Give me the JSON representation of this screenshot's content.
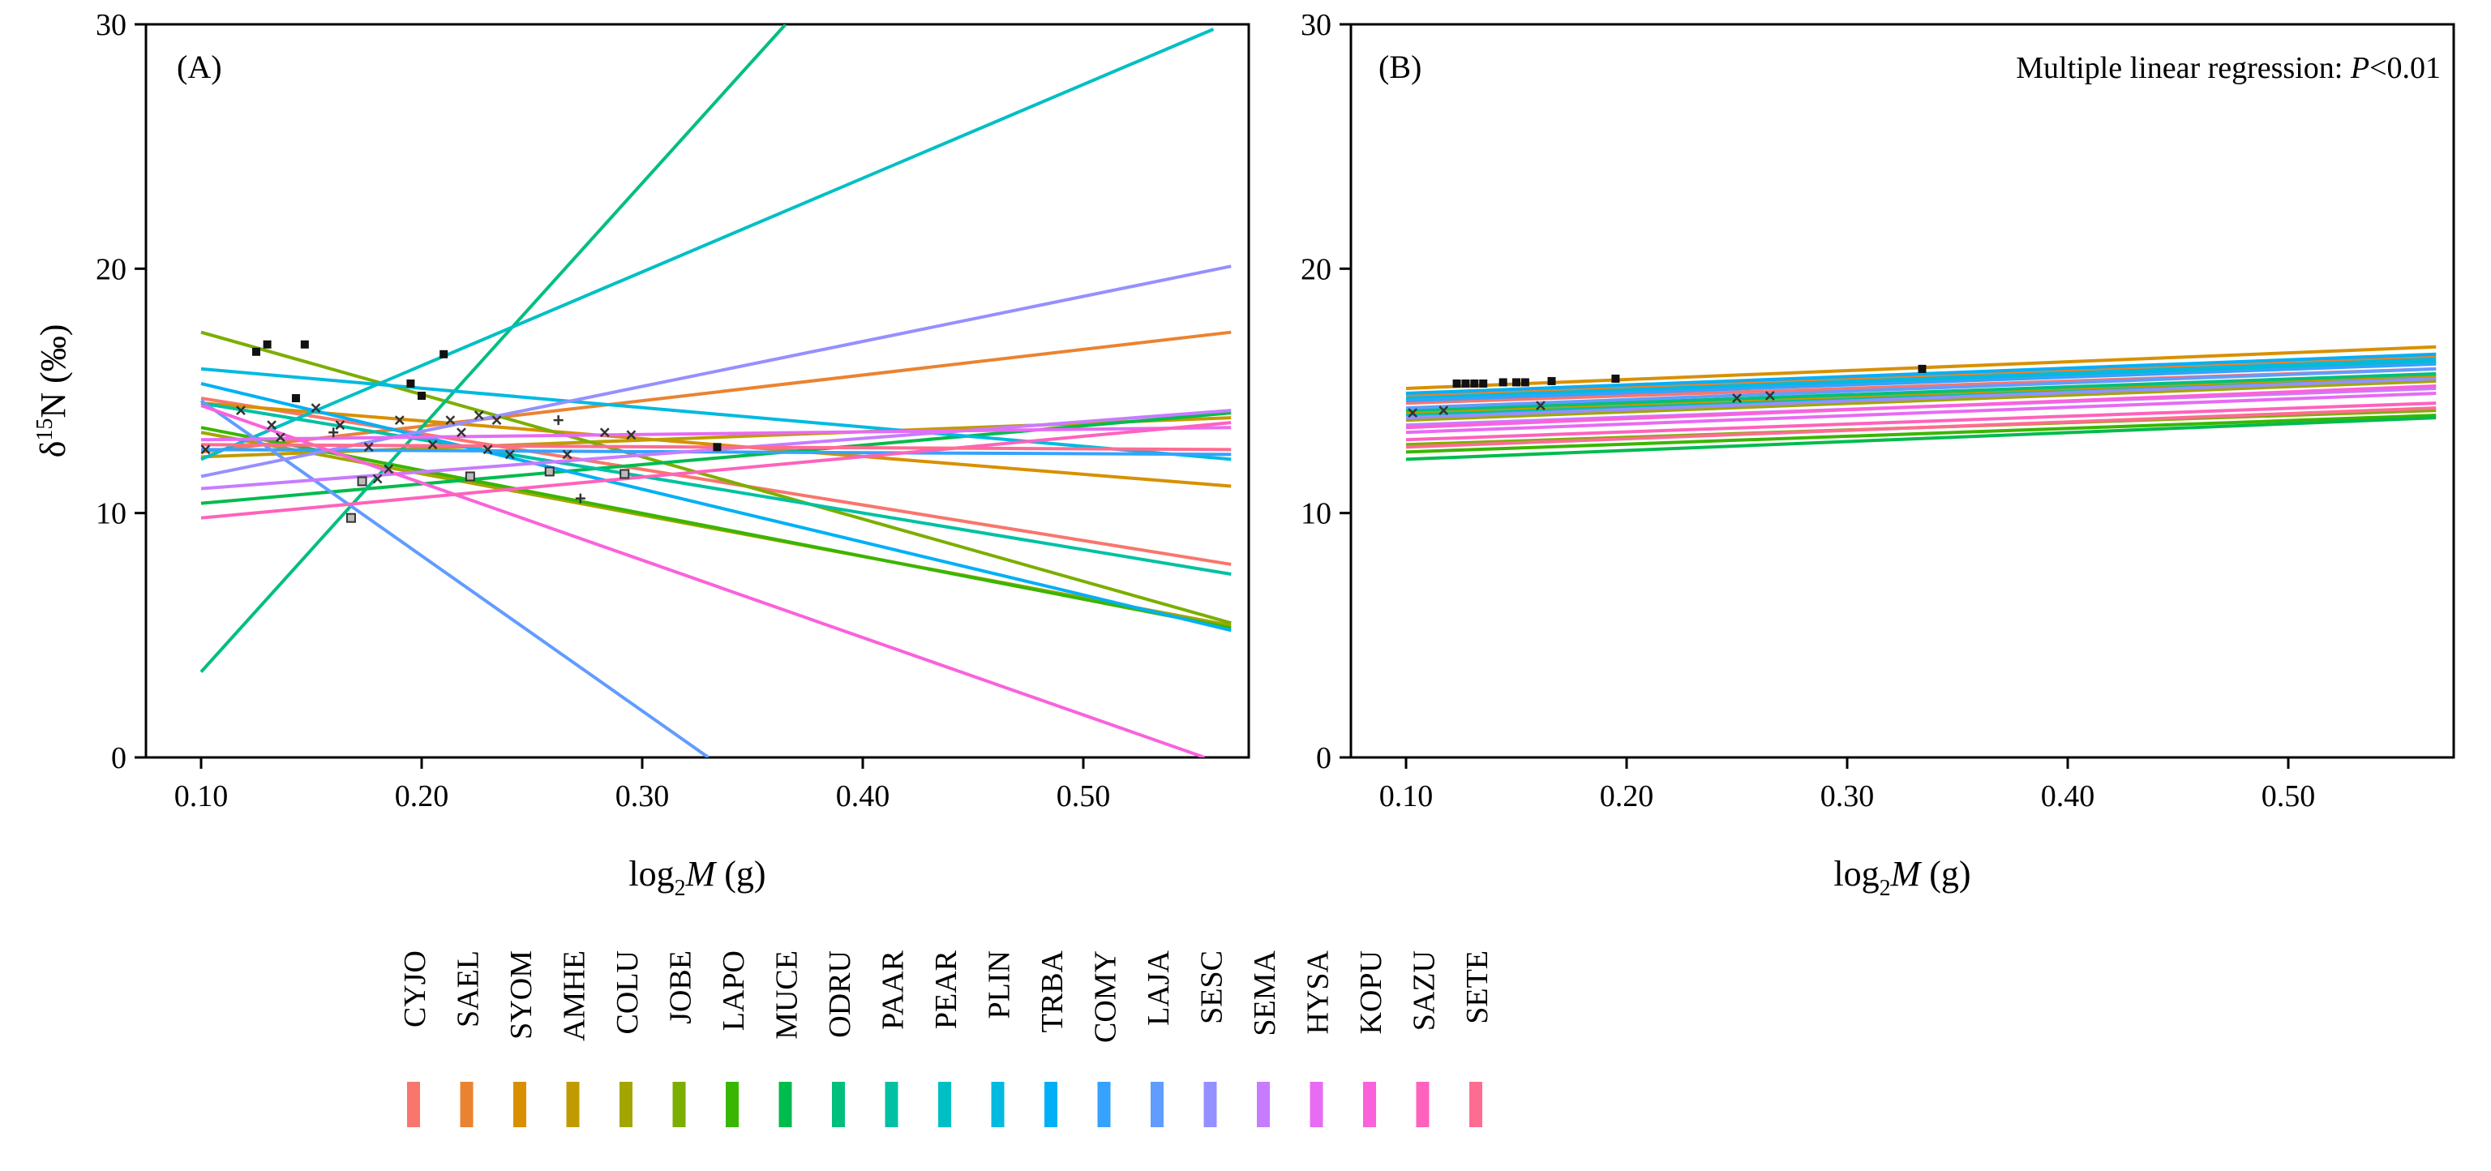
{
  "chart_data": [
    {
      "panel": "A",
      "panel_label": "(A)",
      "type": "scatter-with-regression-lines",
      "xlabel": "log2M (g)",
      "ylabel": "δ15N (‰)",
      "xlim": [
        0.075,
        0.575
      ],
      "ylim": [
        0,
        30
      ],
      "x_ticks": [
        0.1,
        0.2,
        0.3,
        0.4,
        0.5
      ],
      "x_tick_labels": [
        "0.10",
        "0.20",
        "0.30",
        "0.40",
        "0.50"
      ],
      "y_ticks": [
        0,
        10,
        20,
        30
      ],
      "y_tick_labels": [
        "0",
        "10",
        "20",
        "30"
      ],
      "lines": [
        {
          "species": "CYJO",
          "x": [
            0.1,
            0.567
          ],
          "y": [
            14.7,
            7.9
          ]
        },
        {
          "species": "SAEL",
          "x": [
            0.1,
            0.567
          ],
          "y": [
            12.5,
            17.4
          ]
        },
        {
          "species": "SYOM",
          "x": [
            0.1,
            0.567
          ],
          "y": [
            14.5,
            11.1
          ]
        },
        {
          "species": "AMHE",
          "x": [
            0.1,
            0.567
          ],
          "y": [
            12.3,
            13.9
          ]
        },
        {
          "species": "COLU",
          "x": [
            0.1,
            0.567
          ],
          "y": [
            13.3,
            5.4
          ]
        },
        {
          "species": "JOBE",
          "x": [
            0.1,
            0.567
          ],
          "y": [
            17.4,
            5.5
          ]
        },
        {
          "species": "LAPO",
          "x": [
            0.1,
            0.567
          ],
          "y": [
            13.5,
            5.3
          ]
        },
        {
          "species": "MUCE",
          "x": [
            0.1,
            0.567
          ],
          "y": [
            10.4,
            14.1
          ]
        },
        {
          "species": "ODRU",
          "x": [
            0.1,
            0.365
          ],
          "y": [
            3.5,
            30
          ]
        },
        {
          "species": "PAAR",
          "x": [
            0.1,
            0.567
          ],
          "y": [
            14.5,
            7.5
          ]
        },
        {
          "species": "PEAR",
          "x": [
            0.1,
            0.559
          ],
          "y": [
            12.2,
            29.8
          ]
        },
        {
          "species": "PLIN",
          "x": [
            0.1,
            0.567
          ],
          "y": [
            15.9,
            12.2
          ]
        },
        {
          "species": "TRBA",
          "x": [
            0.1,
            0.567
          ],
          "y": [
            15.3,
            5.2
          ]
        },
        {
          "species": "COMY",
          "x": [
            0.1,
            0.567
          ],
          "y": [
            12.6,
            12.4
          ]
        },
        {
          "species": "LAJA",
          "x": [
            0.1,
            0.33
          ],
          "y": [
            14.6,
            0
          ]
        },
        {
          "species": "SESC",
          "x": [
            0.1,
            0.567
          ],
          "y": [
            11.5,
            20.1
          ]
        },
        {
          "species": "SEMA",
          "x": [
            0.1,
            0.567
          ],
          "y": [
            11.0,
            14.2
          ]
        },
        {
          "species": "HYSA",
          "x": [
            0.1,
            0.567
          ],
          "y": [
            13.0,
            13.5
          ]
        },
        {
          "species": "KOPU",
          "x": [
            0.1,
            0.555
          ],
          "y": [
            14.4,
            0
          ]
        },
        {
          "species": "SAZU",
          "x": [
            0.1,
            0.567
          ],
          "y": [
            9.8,
            13.7
          ]
        },
        {
          "species": "SETE",
          "x": [
            0.1,
            0.567
          ],
          "y": [
            12.8,
            12.6
          ]
        }
      ],
      "points": [
        {
          "x": 0.102,
          "y": 12.6,
          "m": "x"
        },
        {
          "x": 0.118,
          "y": 14.2,
          "m": "x"
        },
        {
          "x": 0.125,
          "y": 16.6,
          "m": "s"
        },
        {
          "x": 0.13,
          "y": 16.9,
          "m": "s"
        },
        {
          "x": 0.132,
          "y": 13.6,
          "m": "x"
        },
        {
          "x": 0.136,
          "y": 13.1,
          "m": "x"
        },
        {
          "x": 0.143,
          "y": 14.7,
          "m": "s"
        },
        {
          "x": 0.147,
          "y": 16.9,
          "m": "s"
        },
        {
          "x": 0.152,
          "y": 14.3,
          "m": "x"
        },
        {
          "x": 0.16,
          "y": 13.3,
          "m": "+"
        },
        {
          "x": 0.163,
          "y": 13.6,
          "m": "x"
        },
        {
          "x": 0.168,
          "y": 9.8,
          "m": "b"
        },
        {
          "x": 0.173,
          "y": 11.3,
          "m": "b"
        },
        {
          "x": 0.176,
          "y": 12.7,
          "m": "x"
        },
        {
          "x": 0.18,
          "y": 11.4,
          "m": "x"
        },
        {
          "x": 0.185,
          "y": 11.8,
          "m": "x"
        },
        {
          "x": 0.19,
          "y": 13.8,
          "m": "x"
        },
        {
          "x": 0.195,
          "y": 15.3,
          "m": "s"
        },
        {
          "x": 0.2,
          "y": 14.8,
          "m": "s"
        },
        {
          "x": 0.205,
          "y": 12.8,
          "m": "x"
        },
        {
          "x": 0.21,
          "y": 16.5,
          "m": "s"
        },
        {
          "x": 0.213,
          "y": 13.8,
          "m": "x"
        },
        {
          "x": 0.218,
          "y": 13.3,
          "m": "x"
        },
        {
          "x": 0.222,
          "y": 11.5,
          "m": "b"
        },
        {
          "x": 0.226,
          "y": 14.0,
          "m": "x"
        },
        {
          "x": 0.23,
          "y": 12.6,
          "m": "x"
        },
        {
          "x": 0.234,
          "y": 13.8,
          "m": "x"
        },
        {
          "x": 0.24,
          "y": 12.4,
          "m": "x"
        },
        {
          "x": 0.258,
          "y": 11.7,
          "m": "b"
        },
        {
          "x": 0.262,
          "y": 13.8,
          "m": "+"
        },
        {
          "x": 0.266,
          "y": 12.4,
          "m": "x"
        },
        {
          "x": 0.272,
          "y": 10.6,
          "m": "+"
        },
        {
          "x": 0.283,
          "y": 13.3,
          "m": "x"
        },
        {
          "x": 0.292,
          "y": 11.6,
          "m": "b"
        },
        {
          "x": 0.295,
          "y": 13.2,
          "m": "x"
        },
        {
          "x": 0.334,
          "y": 12.7,
          "m": "s"
        }
      ]
    },
    {
      "panel": "B",
      "panel_label": "(B)",
      "type": "scatter-with-regression-lines",
      "annotation": "Multiple linear regression: P<0.01",
      "xlabel": "log2M (g)",
      "ylabel": "",
      "xlim": [
        0.075,
        0.575
      ],
      "ylim": [
        0,
        30
      ],
      "x_ticks": [
        0.1,
        0.2,
        0.3,
        0.4,
        0.5
      ],
      "x_tick_labels": [
        "0.10",
        "0.20",
        "0.30",
        "0.40",
        "0.50"
      ],
      "y_ticks": [
        0,
        10,
        20,
        30
      ],
      "y_tick_labels": [
        "0",
        "10",
        "20",
        "30"
      ],
      "lines": [
        {
          "species": "CYJO",
          "x": [
            0.1,
            0.567
          ],
          "y": [
            14.5,
            15.9
          ]
        },
        {
          "species": "SAEL",
          "x": [
            0.1,
            0.567
          ],
          "y": [
            14.8,
            16.4
          ]
        },
        {
          "species": "SYOM",
          "x": [
            0.1,
            0.567
          ],
          "y": [
            15.1,
            16.8
          ]
        },
        {
          "species": "AMHE",
          "x": [
            0.1,
            0.567
          ],
          "y": [
            14.1,
            15.6
          ]
        },
        {
          "species": "COLU",
          "x": [
            0.1,
            0.567
          ],
          "y": [
            13.8,
            15.4
          ]
        },
        {
          "species": "JOBE",
          "x": [
            0.1,
            0.567
          ],
          "y": [
            12.8,
            14.2
          ]
        },
        {
          "species": "LAPO",
          "x": [
            0.1,
            0.567
          ],
          "y": [
            12.5,
            14.0
          ]
        },
        {
          "species": "MUCE",
          "x": [
            0.1,
            0.567
          ],
          "y": [
            12.2,
            13.9
          ]
        },
        {
          "species": "ODRU",
          "x": [
            0.1,
            0.567
          ],
          "y": [
            14.2,
            15.7
          ]
        },
        {
          "species": "PAAR",
          "x": [
            0.1,
            0.567
          ],
          "y": [
            14.0,
            15.5
          ]
        },
        {
          "species": "PEAR",
          "x": [
            0.1,
            0.567
          ],
          "y": [
            14.6,
            16.2
          ]
        },
        {
          "species": "PLIN",
          "x": [
            0.1,
            0.567
          ],
          "y": [
            14.7,
            16.3
          ]
        },
        {
          "species": "TRBA",
          "x": [
            0.1,
            0.567
          ],
          "y": [
            14.9,
            16.5
          ]
        },
        {
          "species": "COMY",
          "x": [
            0.1,
            0.567
          ],
          "y": [
            14.6,
            16.1
          ]
        },
        {
          "species": "LAJA",
          "x": [
            0.1,
            0.567
          ],
          "y": [
            14.3,
            15.9
          ]
        },
        {
          "species": "SESC",
          "x": [
            0.1,
            0.567
          ],
          "y": [
            13.9,
            15.5
          ]
        },
        {
          "species": "SEMA",
          "x": [
            0.1,
            0.567
          ],
          "y": [
            13.6,
            15.1
          ]
        },
        {
          "species": "HYSA",
          "x": [
            0.1,
            0.567
          ],
          "y": [
            13.3,
            14.9
          ]
        },
        {
          "species": "KOPU",
          "x": [
            0.1,
            0.567
          ],
          "y": [
            13.5,
            15.2
          ]
        },
        {
          "species": "SAZU",
          "x": [
            0.1,
            0.567
          ],
          "y": [
            13.0,
            14.5
          ]
        },
        {
          "species": "SETE",
          "x": [
            0.1,
            0.567
          ],
          "y": [
            12.7,
            14.3
          ]
        }
      ],
      "points": [
        {
          "x": 0.103,
          "y": 14.1,
          "m": "x"
        },
        {
          "x": 0.117,
          "y": 14.2,
          "m": "x"
        },
        {
          "x": 0.123,
          "y": 15.3,
          "m": "s"
        },
        {
          "x": 0.127,
          "y": 15.3,
          "m": "s"
        },
        {
          "x": 0.131,
          "y": 15.3,
          "m": "s"
        },
        {
          "x": 0.135,
          "y": 15.3,
          "m": "s"
        },
        {
          "x": 0.144,
          "y": 15.35,
          "m": "s"
        },
        {
          "x": 0.15,
          "y": 15.35,
          "m": "s"
        },
        {
          "x": 0.154,
          "y": 15.35,
          "m": "s"
        },
        {
          "x": 0.161,
          "y": 14.4,
          "m": "x"
        },
        {
          "x": 0.166,
          "y": 15.4,
          "m": "s"
        },
        {
          "x": 0.195,
          "y": 15.5,
          "m": "s"
        },
        {
          "x": 0.25,
          "y": 14.7,
          "m": "x"
        },
        {
          "x": 0.265,
          "y": 14.8,
          "m": "x"
        },
        {
          "x": 0.334,
          "y": 15.9,
          "m": "s"
        }
      ]
    }
  ],
  "legend": {
    "items": [
      {
        "label": "CYJO",
        "color": "#F8766D"
      },
      {
        "label": "SAEL",
        "color": "#EA8331"
      },
      {
        "label": "SYOM",
        "color": "#D89000"
      },
      {
        "label": "AMHE",
        "color": "#C09B00"
      },
      {
        "label": "COLU",
        "color": "#A3A500"
      },
      {
        "label": "JOBE",
        "color": "#7CAE00"
      },
      {
        "label": "LAPO",
        "color": "#39B600"
      },
      {
        "label": "MUCE",
        "color": "#00BB4E"
      },
      {
        "label": "ODRU",
        "color": "#00BF7D"
      },
      {
        "label": "PAAR",
        "color": "#00C1A3"
      },
      {
        "label": "PEAR",
        "color": "#00BFC4"
      },
      {
        "label": "PLIN",
        "color": "#00BAE0"
      },
      {
        "label": "TRBA",
        "color": "#00B0F6"
      },
      {
        "label": "COMY",
        "color": "#35A2FF"
      },
      {
        "label": "LAJA",
        "color": "#619CFF"
      },
      {
        "label": "SESC",
        "color": "#9590FF"
      },
      {
        "label": "SEMA",
        "color": "#C77CFF"
      },
      {
        "label": "HYSA",
        "color": "#E76BF3"
      },
      {
        "label": "KOPU",
        "color": "#FA62DB"
      },
      {
        "label": "SAZU",
        "color": "#FF62BC"
      },
      {
        "label": "SETE",
        "color": "#FF6C91"
      }
    ]
  }
}
